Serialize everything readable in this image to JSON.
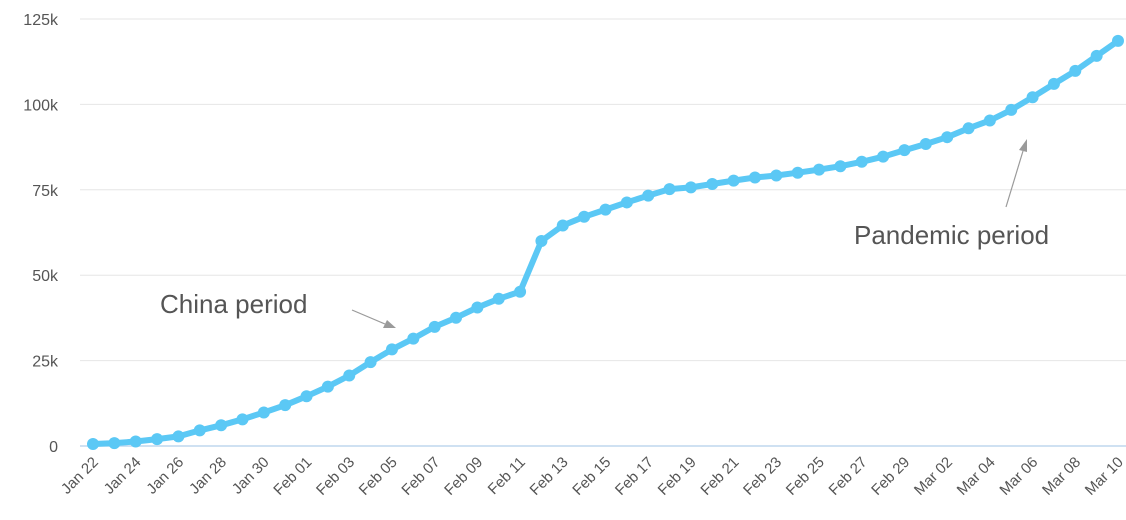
{
  "chart_data": {
    "type": "line",
    "title": "",
    "xlabel": "",
    "ylabel": "",
    "ylim": [
      0,
      125000
    ],
    "yticks": [
      0,
      25000,
      50000,
      75000,
      100000,
      125000
    ],
    "ytick_labels": [
      "0",
      "25k",
      "50k",
      "75k",
      "100k",
      "125k"
    ],
    "grid": "horizontal",
    "legend": "none",
    "line_color": "#5BC8F5",
    "baseline_color": "#BFD7EE",
    "x": [
      "Jan 22",
      "Jan 23",
      "Jan 24",
      "Jan 25",
      "Jan 26",
      "Jan 27",
      "Jan 28",
      "Jan 29",
      "Jan 30",
      "Jan 31",
      "Feb 01",
      "Feb 02",
      "Feb 03",
      "Feb 04",
      "Feb 05",
      "Feb 06",
      "Feb 07",
      "Feb 08",
      "Feb 09",
      "Feb 10",
      "Feb 11",
      "Feb 12",
      "Feb 13",
      "Feb 14",
      "Feb 15",
      "Feb 16",
      "Feb 17",
      "Feb 18",
      "Feb 19",
      "Feb 20",
      "Feb 21",
      "Feb 22",
      "Feb 23",
      "Feb 24",
      "Feb 25",
      "Feb 26",
      "Feb 27",
      "Feb 28",
      "Feb 29",
      "Mar 01",
      "Mar 02",
      "Mar 03",
      "Mar 04",
      "Mar 05",
      "Mar 06",
      "Mar 07",
      "Mar 08",
      "Mar 09",
      "Mar 10"
    ],
    "xtick_labels": [
      "Jan 22",
      "Jan 24",
      "Jan 26",
      "Jan 28",
      "Jan 30",
      "Feb 01",
      "Feb 03",
      "Feb 05",
      "Feb 07",
      "Feb 09",
      "Feb 11",
      "Feb 13",
      "Feb 15",
      "Feb 17",
      "Feb 19",
      "Feb 21",
      "Feb 23",
      "Feb 25",
      "Feb 27",
      "Feb 29",
      "Mar 02",
      "Mar 04",
      "Mar 06",
      "Mar 08",
      "Mar 10"
    ],
    "series": [
      {
        "values": [
          580,
          845,
          1320,
          2015,
          2800,
          4580,
          6060,
          7810,
          9820,
          11950,
          14550,
          17390,
          20630,
          24550,
          28280,
          31440,
          34880,
          37560,
          40550,
          43100,
          45170,
          60000,
          64550,
          67100,
          69200,
          71300,
          73300,
          75200,
          75700,
          76700,
          77700,
          78600,
          79200,
          80000,
          80900,
          81900,
          83200,
          84700,
          86600,
          88400,
          90400,
          93000,
          95300,
          98400,
          102100,
          106000,
          109800,
          114200,
          118600
        ]
      }
    ],
    "annotations": [
      {
        "text": "China period",
        "arrow_to": {
          "x": "Feb 06",
          "y": 35000
        }
      },
      {
        "text": "Pandemic period",
        "arrow_to": {
          "x": "Mar 06",
          "y": 90000
        }
      }
    ]
  }
}
